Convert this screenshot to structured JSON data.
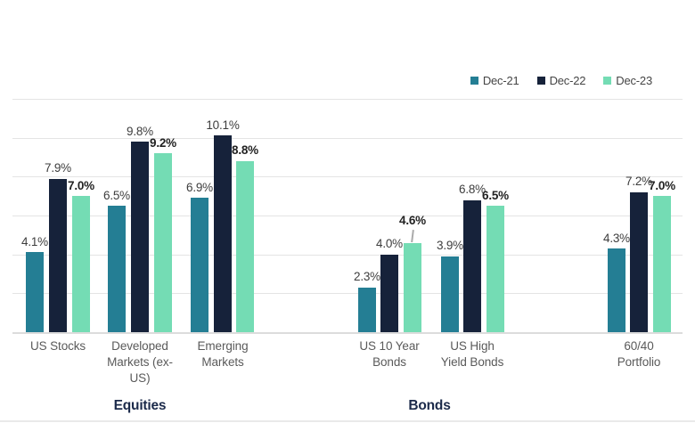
{
  "chart_data": {
    "type": "bar",
    "categories": [
      "US Stocks",
      "Developed Markets (ex-US)",
      "Emerging Markets",
      "US 10 Year Bonds",
      "US High Yield Bonds",
      "60/40 Portfolio"
    ],
    "category_display": [
      "US Stocks",
      "Developed\nMarkets (ex-\nUS)",
      "Emerging\nMarkets",
      "US 10 Year\nBonds",
      "US High\nYield Bonds",
      "60/40\nPortfolio"
    ],
    "series": [
      {
        "name": "Dec-21",
        "color": "#247e94",
        "bold_labels": false,
        "values": [
          4.1,
          6.5,
          6.9,
          2.3,
          3.9,
          4.3
        ],
        "labels": [
          "4.1%",
          "6.5%",
          "6.9%",
          "2.3%",
          "3.9%",
          "4.3%"
        ]
      },
      {
        "name": "Dec-22",
        "color": "#16223a",
        "bold_labels": false,
        "values": [
          7.9,
          9.8,
          10.1,
          4.0,
          6.8,
          7.2
        ],
        "labels": [
          "7.9%",
          "9.8%",
          "10.1%",
          "4.0%",
          "6.8%",
          "7.2%"
        ]
      },
      {
        "name": "Dec-23",
        "color": "#74dcb4",
        "bold_labels": true,
        "values": [
          7.0,
          9.2,
          8.8,
          4.6,
          6.5,
          7.0
        ],
        "labels": [
          "7.0%",
          "9.2%",
          "8.8%",
          "4.6%",
          "6.5%",
          "7.0%"
        ]
      }
    ],
    "group_labels": [
      {
        "label": "Equities",
        "spans_categories": [
          0,
          2
        ]
      },
      {
        "label": "Bonds",
        "spans_categories": [
          3,
          4
        ]
      }
    ],
    "annotations": [
      {
        "category_index": 3,
        "series_index": 2,
        "label": "4.6%",
        "callout_line": true
      }
    ],
    "ylim": [
      0,
      12
    ],
    "gridline_step": 2,
    "grid": true,
    "legend_position": "top-right",
    "colors": {
      "grid": "#e4e4e4",
      "axis_baseline": "#dcdcdc",
      "value_label": "#3d3d3d",
      "value_label_bold": "#222222",
      "category_label": "#5a5a5a",
      "group_label": "#1b2a4a",
      "legend_text": "#454545"
    }
  }
}
